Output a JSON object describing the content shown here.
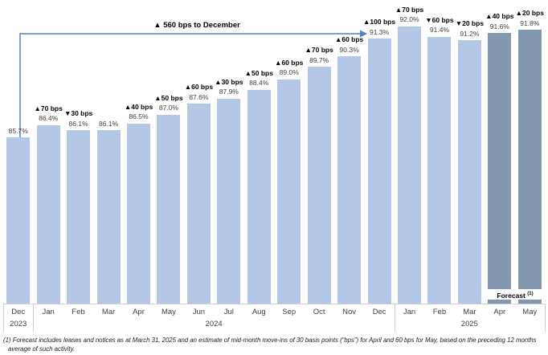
{
  "annotation": {
    "text": "▲ 560 bps to December"
  },
  "forecast_label": {
    "text": "Forecast",
    "superscript": "(1)"
  },
  "footnote": "(1) Forecast includes leases and notices as at March 31, 2025 and an estimate of mid-month move-ins of 30 basis points (“bps”) for April and 60 bps for May, based on the preceding 12 months average of such activity.",
  "colors": {
    "bar_light": "#b4c7e7",
    "bar_dark": "#8497b0",
    "arrow": "#4f81bd",
    "axis_line": "#cfcfcf",
    "bps_text": "#000000",
    "pct_text": "#404040"
  },
  "chart_data": {
    "type": "bar",
    "title": "",
    "xlabel": "",
    "ylabel": "",
    "grid": false,
    "legend": "none",
    "ylim": [
      76.3,
      93.5
    ],
    "categories": [
      "Dec",
      "Jan",
      "Feb",
      "Mar",
      "Apr",
      "May",
      "Jun",
      "Jul",
      "Aug",
      "Sep",
      "Oct",
      "Nov",
      "Dec",
      "Jan",
      "Feb",
      "Mar",
      "Apr",
      "May"
    ],
    "year_groups": [
      {
        "label": "2023",
        "start": 0,
        "end": 0
      },
      {
        "label": "2024",
        "start": 1,
        "end": 12
      },
      {
        "label": "2025",
        "start": 13,
        "end": 17
      }
    ],
    "values": [
      85.7,
      86.4,
      86.1,
      86.1,
      86.5,
      87.0,
      87.6,
      87.9,
      88.4,
      89.0,
      89.7,
      90.3,
      91.3,
      92.0,
      91.4,
      91.2,
      91.6,
      91.8
    ],
    "value_labels": [
      "85.7%",
      "86.4%",
      "86.1%",
      "86.1%",
      "86.5%",
      "87.0%",
      "87.6%",
      "87.9%",
      "88.4%",
      "89.0%",
      "89.7%",
      "90.3%",
      "91.3%",
      "92.0%",
      "91.4%",
      "91.2%",
      "91.6%",
      "91.8%"
    ],
    "bps_labels": [
      "",
      "▲70 bps",
      "▼30 bps",
      "",
      "▲40 bps",
      "▲50 bps",
      "▲60 bps",
      "▲30 bps",
      "▲50 bps",
      "▲60 bps",
      "▲70 bps",
      "▲60 bps",
      "▲100 bps",
      "▲70 bps",
      "▼60 bps",
      "▼20 bps",
      "▲40 bps",
      "▲20 bps"
    ],
    "forecast_indices": [
      16,
      17
    ],
    "annotation_arrow": {
      "from_category_index": 0,
      "to_category_index": 12,
      "label": "▲ 560 bps to December"
    }
  }
}
